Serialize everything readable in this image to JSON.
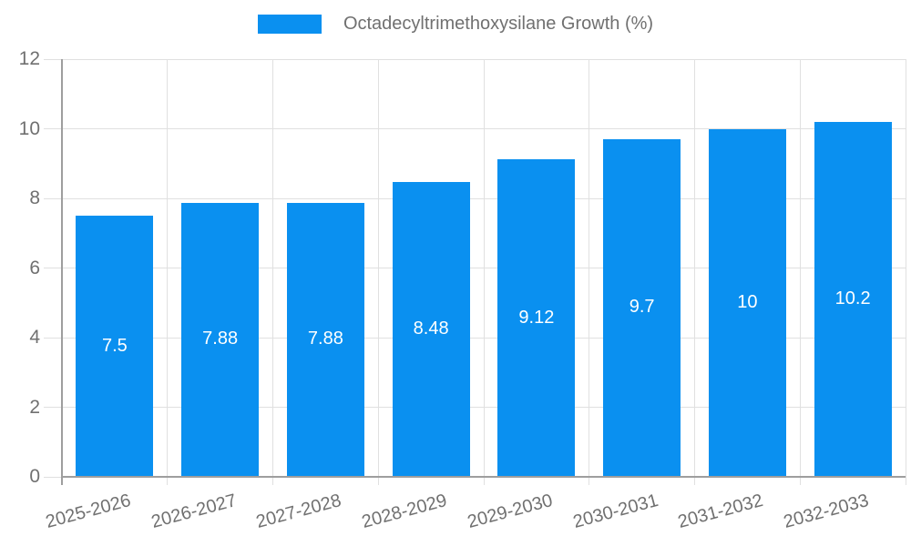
{
  "chart_data": {
    "type": "bar",
    "title": "",
    "legend": {
      "position": "top",
      "entries": [
        "Octadecyltrimethoxysilane Growth (%)"
      ]
    },
    "series_name": "Octadecyltrimethoxysilane Growth (%)",
    "categories": [
      "2025-2026",
      "2026-2027",
      "2027-2028",
      "2028-2029",
      "2029-2030",
      "2030-2031",
      "2031-2032",
      "2032-2033"
    ],
    "values": [
      7.5,
      7.88,
      7.88,
      8.48,
      9.12,
      9.7,
      10,
      10.2
    ],
    "value_labels": [
      "7.5",
      "7.88",
      "7.88",
      "8.48",
      "9.12",
      "9.7",
      "10",
      "10.2"
    ],
    "xlabel": "",
    "ylabel": "",
    "ylim": [
      0,
      12
    ],
    "yticks": [
      0,
      2,
      4,
      6,
      8,
      10,
      12
    ],
    "grid": true,
    "colors": {
      "bar": "#0a90f0",
      "grid": "#e0e0e0",
      "axis": "#9e9e9e",
      "tick_text": "#707070",
      "legend_text": "#707070",
      "value_text": "#ffffff",
      "background": "#ffffff"
    }
  }
}
